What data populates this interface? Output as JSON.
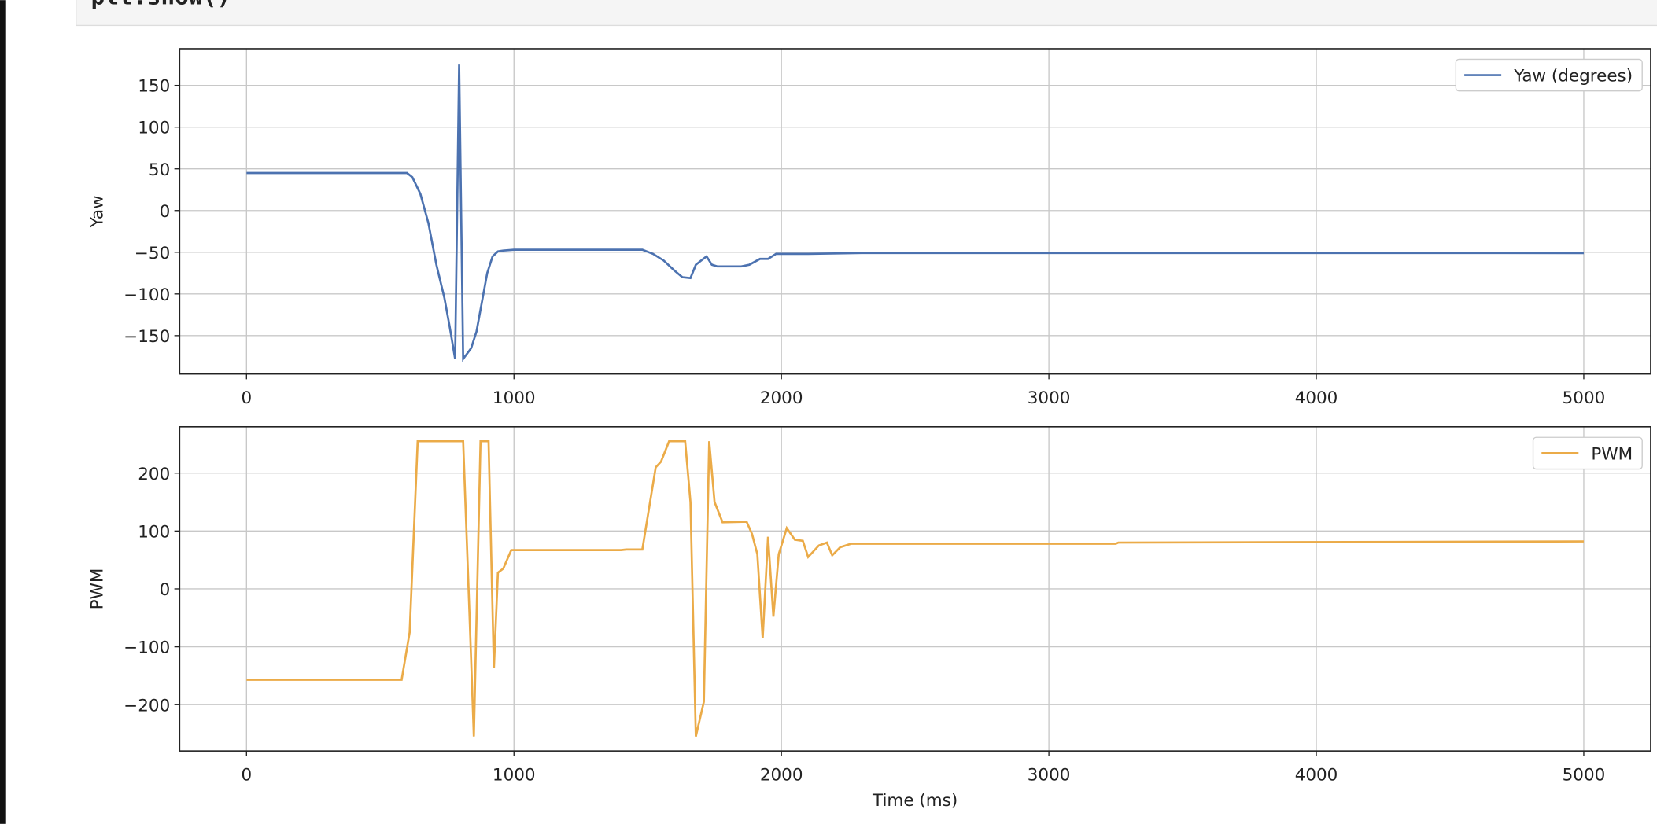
{
  "code": "plt.show()",
  "chart_data": [
    {
      "type": "line",
      "x": [
        0,
        600,
        620,
        650,
        680,
        710,
        740,
        760,
        780,
        795,
        810,
        840,
        860,
        880,
        900,
        920,
        940,
        960,
        1000,
        1480,
        1520,
        1560,
        1600,
        1630,
        1660,
        1680,
        1720,
        1740,
        1760,
        1850,
        1880,
        1920,
        1950,
        1980,
        2100,
        2300,
        5000
      ],
      "series": [
        {
          "name": "Yaw (degrees)",
          "color": "#4c72b0",
          "values": [
            45,
            45,
            40,
            20,
            -15,
            -65,
            -105,
            -140,
            -178,
            175,
            -178,
            -165,
            -145,
            -110,
            -75,
            -55,
            -49,
            -48,
            -47,
            -47,
            -52,
            -60,
            -72,
            -80,
            -81,
            -65,
            -55,
            -65,
            -67,
            -67,
            -65,
            -58,
            -58,
            -52,
            -52,
            -51,
            -51
          ]
        }
      ],
      "xlim": [
        -250,
        5250
      ],
      "ylim": [
        -196,
        194
      ],
      "xticks": [
        0,
        1000,
        2000,
        3000,
        4000,
        5000
      ],
      "yticks": [
        {
          "value": -150,
          "label": "−150"
        },
        {
          "value": -100,
          "label": "−100"
        },
        {
          "value": -50,
          "label": "−50"
        },
        0,
        50,
        100,
        150
      ],
      "ylabel": "Yaw",
      "grid": true,
      "legend": "upper right"
    },
    {
      "type": "line",
      "x": [
        0,
        580,
        610,
        640,
        810,
        835,
        850,
        875,
        905,
        925,
        940,
        960,
        990,
        1400,
        1420,
        1480,
        1530,
        1550,
        1580,
        1640,
        1660,
        1680,
        1710,
        1730,
        1750,
        1780,
        1870,
        1890,
        1910,
        1930,
        1950,
        1970,
        1990,
        2020,
        2050,
        2080,
        2100,
        2140,
        2170,
        2190,
        2220,
        2260,
        3250,
        3260,
        5000
      ],
      "series": [
        {
          "name": "PWM",
          "color": "#ebab48",
          "values": [
            -157,
            -157,
            -75,
            255,
            255,
            -60,
            -255,
            255,
            255,
            -137,
            28,
            35,
            67,
            67,
            68,
            68,
            210,
            220,
            255,
            255,
            150,
            -255,
            -195,
            255,
            150,
            115,
            116,
            95,
            60,
            -85,
            90,
            -48,
            60,
            105,
            85,
            83,
            55,
            75,
            80,
            58,
            72,
            78,
            78,
            80,
            82
          ]
        }
      ],
      "xlim": [
        -250,
        5250
      ],
      "ylim": [
        -280,
        280
      ],
      "xticks": [
        0,
        1000,
        2000,
        3000,
        4000,
        5000
      ],
      "yticks": [
        {
          "value": -200,
          "label": "−200"
        },
        {
          "value": -100,
          "label": "−100"
        },
        0,
        100,
        200
      ],
      "ylabel": "PWM",
      "xlabel": "Time (ms)",
      "grid": true,
      "legend": "upper right"
    }
  ]
}
